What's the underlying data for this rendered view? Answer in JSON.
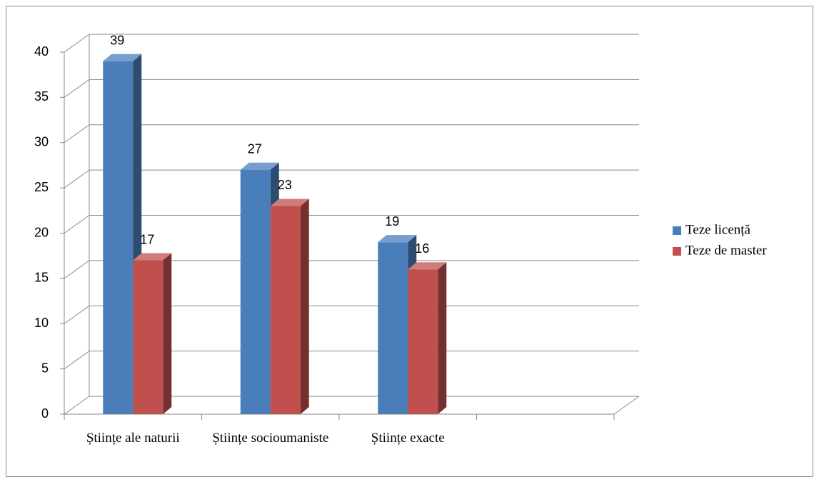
{
  "chart_data": {
    "type": "bar3d",
    "categories": [
      "Științe ale naturii",
      "Științe socioumaniste",
      "Științe exacte",
      null
    ],
    "series": [
      {
        "name": "Teze licență",
        "color": "#4a7ebb",
        "values": [
          39,
          27,
          19,
          null
        ]
      },
      {
        "name": "Teze de master",
        "color": "#c0504d",
        "values": [
          17,
          23,
          16,
          null
        ]
      }
    ],
    "ylim": [
      0,
      40
    ],
    "yticks": [
      0,
      5,
      10,
      15,
      20,
      25,
      30,
      35,
      40
    ],
    "grid": true,
    "legend": "right"
  }
}
